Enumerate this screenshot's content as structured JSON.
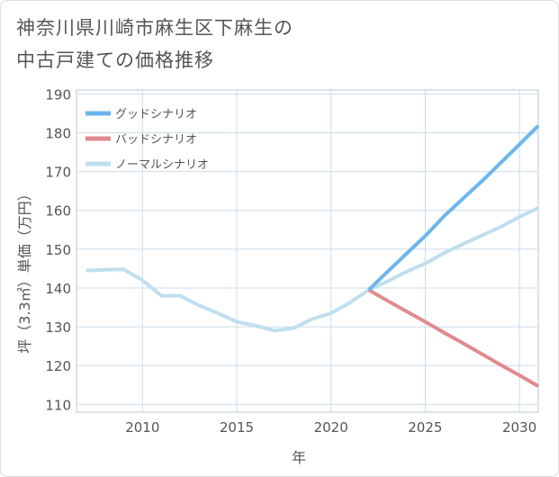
{
  "title_line1": "神奈川県川崎市麻生区下麻生の",
  "title_line2": "中古戸建ての価格推移",
  "chart_data": {
    "type": "line",
    "xlabel": "年",
    "ylabel": "坪（3.3㎡）単価（万円）",
    "xlim": [
      2006.5,
      2031
    ],
    "ylim": [
      108,
      191
    ],
    "xticks": [
      2010,
      2015,
      2020,
      2025,
      2030
    ],
    "yticks": [
      110,
      120,
      130,
      140,
      150,
      160,
      170,
      180,
      190
    ],
    "grid": true,
    "legend_position": "top-left",
    "series": [
      {
        "name": "グッドシナリオ",
        "color": "#6cb6ee",
        "x": [
          2022,
          2023,
          2024,
          2025,
          2026,
          2027,
          2028,
          2029,
          2030,
          2031
        ],
        "values": [
          139.5,
          144.2,
          148.8,
          153.4,
          158.5,
          163.0,
          167.5,
          172.2,
          177.0,
          181.8
        ]
      },
      {
        "name": "バッドシナリオ",
        "color": "#e08a90",
        "x": [
          2022,
          2023,
          2024,
          2025,
          2026,
          2027,
          2028,
          2029,
          2030,
          2031
        ],
        "values": [
          139.5,
          136.7,
          134.0,
          131.3,
          128.5,
          125.8,
          123.0,
          120.2,
          117.5,
          114.7
        ]
      },
      {
        "name": "ノーマルシナリオ",
        "color": "#bfdfee",
        "x": [
          2007,
          2008,
          2009,
          2010,
          2011,
          2012,
          2013,
          2014,
          2015,
          2016,
          2017,
          2018,
          2019,
          2020,
          2021,
          2022,
          2023,
          2024,
          2025,
          2026,
          2027,
          2028,
          2029,
          2030,
          2031
        ],
        "values": [
          144.5,
          144.7,
          144.8,
          142.0,
          138.0,
          138.0,
          135.5,
          133.5,
          131.3,
          130.3,
          129.0,
          129.6,
          132.0,
          133.5,
          136.2,
          139.5,
          141.7,
          144.2,
          146.3,
          149.0,
          151.3,
          153.5,
          155.7,
          158.3,
          160.6
        ]
      }
    ]
  }
}
